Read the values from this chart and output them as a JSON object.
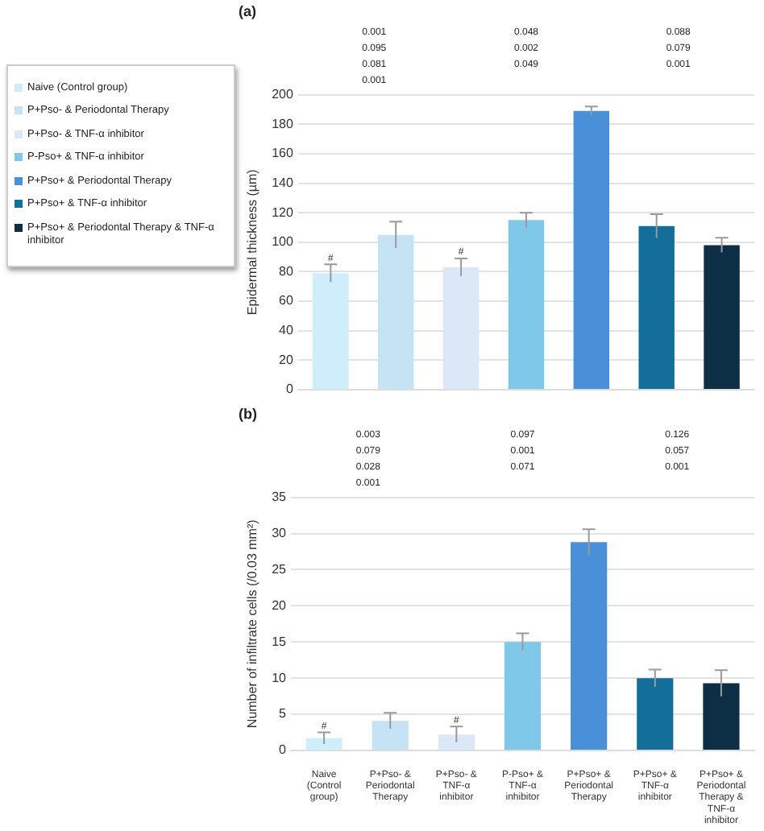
{
  "chart_data": [
    {
      "type": "bar",
      "title": "(a)",
      "ylabel": "Epidermal thickness (µm)",
      "categories": [
        null,
        null,
        null,
        null,
        null,
        null,
        null
      ],
      "series": [
        {
          "name": "Naive (Control group)",
          "color": "#cdeefa",
          "values": [
            79,
            null,
            null,
            null,
            null,
            null,
            null
          ],
          "errors": [
            6,
            null,
            null,
            null,
            null,
            null,
            null
          ]
        },
        {
          "name": "P+Pso- & Periodontal Therapy",
          "color": "#c5e3f5",
          "values": [
            null,
            105,
            null,
            null,
            null,
            null,
            null
          ],
          "errors": [
            null,
            9,
            null,
            null,
            null,
            null,
            null
          ]
        },
        {
          "name": "P+Pso- & TNF-α inhibitor",
          "color": "#dbe8f7",
          "values": [
            null,
            null,
            83,
            null,
            null,
            null,
            null
          ],
          "errors": [
            null,
            null,
            6,
            null,
            null,
            null,
            null
          ]
        },
        {
          "name": "P-Pso+ & TNF-α inhibitor",
          "color": "#7fc8ea",
          "values": [
            null,
            null,
            null,
            115,
            null,
            null,
            null
          ],
          "errors": [
            null,
            null,
            null,
            5,
            null,
            null,
            null
          ]
        },
        {
          "name": "P+Pso+ & Periodontal Therapy",
          "color": "#4a90d9",
          "values": [
            null,
            null,
            null,
            null,
            189,
            null,
            null
          ],
          "errors": [
            null,
            null,
            null,
            null,
            3,
            null,
            null
          ]
        },
        {
          "name": "P+Pso+ & TNF-α inhibitor",
          "color": "#136f9a",
          "values": [
            null,
            null,
            null,
            null,
            null,
            111,
            null
          ],
          "errors": [
            null,
            null,
            null,
            null,
            null,
            8,
            null
          ]
        },
        {
          "name": "P+Pso+ & Periodontal Therapy & TNF-α inhibitor",
          "color": "#0d2f45",
          "values": [
            null,
            null,
            null,
            null,
            null,
            null,
            98
          ],
          "errors": [
            null,
            null,
            null,
            null,
            null,
            null,
            5
          ]
        }
      ],
      "ylim": [
        0,
        200
      ],
      "yticks": [
        0,
        20,
        40,
        60,
        80,
        100,
        120,
        140,
        160,
        180,
        200
      ],
      "grid": "y",
      "legend": "left",
      "tick_labels": "y",
      "annotations": [
        {
          "text": "#",
          "y": 79
        },
        {
          "text": "#",
          "y": 83
        },
        "0.001",
        "0.048",
        "0.088",
        "0.095",
        "0.002",
        "0.079",
        "0.081",
        "0.049",
        "0.001",
        "0.001"
      ]
    },
    {
      "type": "bar",
      "title": "(b)",
      "ylabel": "Number of infiltrate cells (/0.03 mm²)",
      "categories": [
        "Naive (Control group)",
        "P+Pso- & Periodontal Therapy",
        "P+Pso- & TNF-α inhibitor",
        "P-Pso+ & TNF-α inhibitor",
        "P+Pso+ & Periodontal Therapy",
        "P+Pso+ & TNF-α inhibitor",
        "P+Pso+ & Periodontal Therapy & TNF-α inhibitor"
      ],
      "values": [
        1.7,
        4.1,
        2.2,
        15,
        28.8,
        10,
        9.3
      ],
      "errors": [
        0.8,
        1.1,
        1.1,
        1.2,
        1.8,
        1.2,
        1.8
      ],
      "colors": [
        "#cdeefa",
        "#c5e3f5",
        "#dbe8f7",
        "#7fc8ea",
        "#4a90d9",
        "#136f9a",
        "#0d2f45"
      ],
      "ylim": [
        0,
        35
      ],
      "yticks": [
        0,
        5,
        10,
        15,
        20,
        25,
        30,
        35
      ],
      "grid": "y",
      "annotations": [
        {
          "text": "#",
          "x": "Naive (Control group)",
          "y": 1.7
        },
        {
          "text": "#",
          "x": "P+Pso- & TNF-α inhibitor",
          "y": 2.2
        },
        "0.003",
        "0.097",
        "0.126",
        "0.079",
        "0.001",
        "0.057",
        "0.028",
        "0.071",
        "0.001",
        "0.001"
      ]
    }
  ]
}
